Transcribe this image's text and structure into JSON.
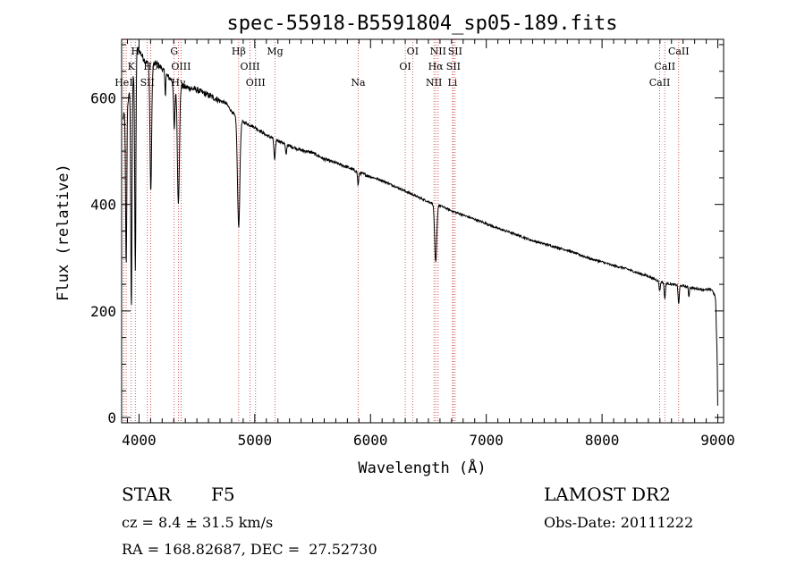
{
  "chart_data": {
    "type": "line",
    "title": "spec-55918-B5591804_sp05-189.fits",
    "xlabel": "Wavelength (Å)",
    "ylabel": "Flux (relative)",
    "xlim": [
      3850,
      9050
    ],
    "ylim": [
      -10,
      710
    ],
    "x_ticks": [
      4000,
      5000,
      6000,
      7000,
      8000,
      9000
    ],
    "y_ticks": [
      0,
      200,
      400,
      600
    ],
    "grid": false,
    "line_color": "#000000",
    "marker_color": "#cc3333",
    "continuum": [
      [
        3860,
        560
      ],
      [
        3900,
        590
      ],
      [
        3950,
        640
      ],
      [
        3980,
        690
      ],
      [
        4000,
        690
      ],
      [
        4050,
        670
      ],
      [
        4100,
        660
      ],
      [
        4150,
        665
      ],
      [
        4200,
        655
      ],
      [
        4250,
        640
      ],
      [
        4300,
        630
      ],
      [
        4350,
        625
      ],
      [
        4400,
        620
      ],
      [
        4450,
        618
      ],
      [
        4500,
        615
      ],
      [
        4550,
        610
      ],
      [
        4600,
        605
      ],
      [
        4650,
        600
      ],
      [
        4700,
        595
      ],
      [
        4750,
        590
      ],
      [
        4800,
        575
      ],
      [
        4850,
        560
      ],
      [
        4900,
        555
      ],
      [
        5000,
        545
      ],
      [
        5100,
        530
      ],
      [
        5200,
        520
      ],
      [
        5300,
        510
      ],
      [
        5400,
        502
      ],
      [
        5500,
        497
      ],
      [
        5600,
        485
      ],
      [
        5700,
        478
      ],
      [
        5800,
        470
      ],
      [
        5900,
        460
      ],
      [
        6000,
        452
      ],
      [
        6100,
        445
      ],
      [
        6200,
        435
      ],
      [
        6300,
        425
      ],
      [
        6400,
        415
      ],
      [
        6500,
        405
      ],
      [
        6600,
        398
      ],
      [
        6700,
        388
      ],
      [
        6800,
        380
      ],
      [
        6900,
        372
      ],
      [
        7000,
        364
      ],
      [
        7100,
        355
      ],
      [
        7200,
        348
      ],
      [
        7300,
        340
      ],
      [
        7400,
        332
      ],
      [
        7500,
        326
      ],
      [
        7600,
        320
      ],
      [
        7700,
        314
      ],
      [
        7800,
        306
      ],
      [
        7900,
        298
      ],
      [
        8000,
        292
      ],
      [
        8100,
        285
      ],
      [
        8200,
        280
      ],
      [
        8300,
        272
      ],
      [
        8400,
        265
      ],
      [
        8500,
        255
      ],
      [
        8600,
        250
      ],
      [
        8700,
        247
      ],
      [
        8800,
        242
      ],
      [
        8900,
        240
      ],
      [
        8950,
        240
      ],
      [
        8980,
        225
      ],
      [
        8995,
        110
      ],
      [
        9000,
        0
      ]
    ],
    "absorption": [
      {
        "x": 3889,
        "depth": 300,
        "width": 5
      },
      {
        "x": 3934,
        "depth": 420,
        "width": 5
      },
      {
        "x": 3968,
        "depth": 400,
        "width": 5
      },
      {
        "x": 4102,
        "depth": 240,
        "width": 7
      },
      {
        "x": 4227,
        "depth": 40,
        "width": 4
      },
      {
        "x": 4305,
        "depth": 90,
        "width": 6
      },
      {
        "x": 4340,
        "depth": 220,
        "width": 9
      },
      {
        "x": 4861,
        "depth": 200,
        "width": 10
      },
      {
        "x": 5172,
        "depth": 40,
        "width": 6
      },
      {
        "x": 5270,
        "depth": 20,
        "width": 5
      },
      {
        "x": 5893,
        "depth": 25,
        "width": 5
      },
      {
        "x": 6563,
        "depth": 110,
        "width": 9
      },
      {
        "x": 8498,
        "depth": 18,
        "width": 5
      },
      {
        "x": 8542,
        "depth": 30,
        "width": 5
      },
      {
        "x": 8662,
        "depth": 35,
        "width": 5
      },
      {
        "x": 8750,
        "depth": 18,
        "width": 4
      }
    ],
    "line_markers": [
      {
        "x": 3869,
        "label": "HeI",
        "row": 3
      },
      {
        "x": 3889,
        "label": "",
        "row": 3
      },
      {
        "x": 3933,
        "label": "K",
        "row": 1
      },
      {
        "x": 3968,
        "label": "H",
        "row": 0
      },
      {
        "x": 4101,
        "label": "Hδ",
        "row": 1
      },
      {
        "x": 4072,
        "label": "SII",
        "row": 3
      },
      {
        "x": 4304,
        "label": "G",
        "row": 0
      },
      {
        "x": 4340,
        "label": "Hγ",
        "row": 3
      },
      {
        "x": 4363,
        "label": "OIII",
        "row": 2
      },
      {
        "x": 4861,
        "label": "Hβ",
        "row": 0
      },
      {
        "x": 4959,
        "label": "OIII",
        "row": 2
      },
      {
        "x": 5007,
        "label": "OIII",
        "row": 3
      },
      {
        "x": 5175,
        "label": "Mg",
        "row": 0
      },
      {
        "x": 5893,
        "label": "Na",
        "row": 3
      },
      {
        "x": 6300,
        "label": "OI",
        "row": 2
      },
      {
        "x": 6364,
        "label": "OI",
        "row": 0
      },
      {
        "x": 6548,
        "label": "NII",
        "row": 3
      },
      {
        "x": 6563,
        "label": "Hα",
        "row": 2
      },
      {
        "x": 6584,
        "label": "NII",
        "row": 0
      },
      {
        "x": 6716,
        "label": "SII",
        "row": 2
      },
      {
        "x": 6731,
        "label": "SII",
        "row": 0
      },
      {
        "x": 6708,
        "label": "Li",
        "row": 3
      },
      {
        "x": 8498,
        "label": "CaII",
        "row": 3
      },
      {
        "x": 8542,
        "label": "CaII",
        "row": 2
      },
      {
        "x": 8662,
        "label": "CaII",
        "row": 0
      }
    ]
  },
  "info": {
    "object_type": "STAR",
    "subclass": "F5",
    "survey": "LAMOST DR2",
    "redshift": "cz = 8.4 ± 31.5 km/s",
    "obs_date": "Obs-Date: 20111222",
    "coords": "RA = 168.82687, DEC =  27.52730"
  }
}
